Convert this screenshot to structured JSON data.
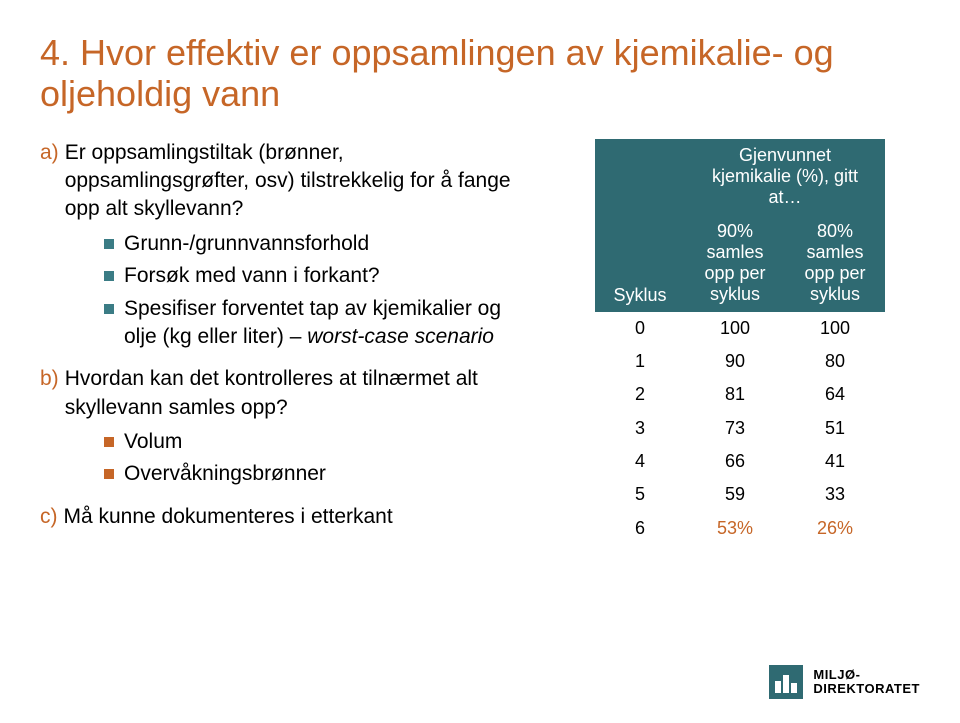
{
  "title": "4. Hvor effektiv er oppsamlingen av kjemikalie- og oljeholdig vann",
  "a": {
    "letter": "a)",
    "text": "Er oppsamlingstiltak (brønner, oppsamlingsgrøfter, osv) tilstrekkelig for å fange opp alt skyllevann?",
    "subs": [
      "Grunn-/grunnvannsforhold",
      "Forsøk med vann i forkant?",
      "Spesifiser forventet tap av kjemikalier og olje (kg eller liter) – worst-case scenario"
    ]
  },
  "b": {
    "letter": "b)",
    "text": "Hvordan kan det kontrolleres at tilnærmet alt skyllevann samles opp?",
    "subs": [
      "Volum",
      "Overvåkningsbrønner"
    ]
  },
  "c": {
    "letter": "c)",
    "text": "Må kunne dokumenteres i etterkant"
  },
  "table": {
    "syklus_label": "Syklus",
    "top_header": "Gjenvunnet kjemikalie (%), gitt at…",
    "col1": "90% samles opp per syklus",
    "col2": "80% samles opp per syklus",
    "header_bg": "#2f6a72",
    "header_fg": "#ffffff",
    "orange": "#c66627",
    "rows": [
      {
        "s": "0",
        "v1": "100",
        "v2": "100"
      },
      {
        "s": "1",
        "v1": "90",
        "v2": "80"
      },
      {
        "s": "2",
        "v1": "81",
        "v2": "64"
      },
      {
        "s": "3",
        "v1": "73",
        "v2": "51"
      },
      {
        "s": "4",
        "v1": "66",
        "v2": "41"
      },
      {
        "s": "5",
        "v1": "59",
        "v2": "33"
      },
      {
        "s": "6",
        "v1": "53%",
        "v2": "26%"
      }
    ]
  },
  "logo": {
    "line1": "MILJØ-",
    "line2": "DIREKTORATET"
  },
  "colors": {
    "teal": "#3b7c85",
    "orange": "#c66627",
    "bg": "#ffffff"
  }
}
